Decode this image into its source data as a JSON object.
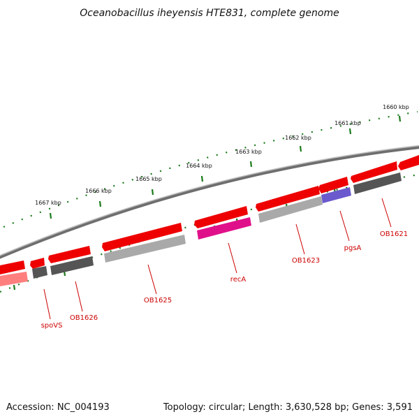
{
  "title": "Oceanobacillus iheyensis HTE831, complete genome",
  "accession": "Accession: NC_004193",
  "summary": "Topology: circular; Length: 3,630,528 bp; Genes: 3,591",
  "kbp_labels": [
    "1660 kbp",
    "1661 kbp",
    "1662 kbp",
    "1663 kbp",
    "1664 kbp",
    "1665 kbp",
    "1666 kbp",
    "1667 kbp"
  ],
  "gene_labels": [
    "OB1621",
    "pgsA",
    "OB1623",
    "recA",
    "OB1625",
    "OB1626",
    "spoVS"
  ],
  "colors": {
    "backbone": "#808080",
    "ticks": "#1a7a1a",
    "gene_red": "#ee0000",
    "gene_gray": "#a9a9a9",
    "gene_dark": "#555555",
    "gene_magenta": "#e0108a",
    "gene_blue": "#6a5acd",
    "gene_pink": "#ff7f7f",
    "label": "#cc0000"
  }
}
